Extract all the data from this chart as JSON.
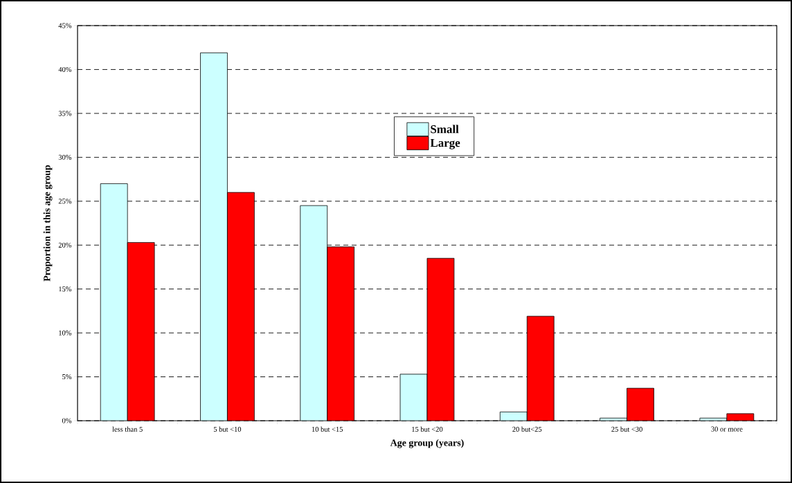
{
  "chart_data": {
    "type": "bar",
    "xlabel": "Age group (years)",
    "ylabel": "Proportion in this age group",
    "categories": [
      "less than 5",
      "5 but <10",
      "10 but <15",
      "15 but <20",
      "20 but<25",
      "25 but <30",
      "30 or more"
    ],
    "series": [
      {
        "name": "Small",
        "color": "#ccffff",
        "values": [
          27.0,
          41.9,
          24.5,
          5.3,
          1.0,
          0.3,
          0.3
        ]
      },
      {
        "name": "Large",
        "color": "#ff0000",
        "values": [
          20.3,
          26.0,
          19.8,
          18.5,
          11.9,
          3.7,
          0.8
        ]
      }
    ],
    "ylim": [
      0,
      45
    ],
    "yticks": [
      {
        "value": 0,
        "label": "0%"
      },
      {
        "value": 5,
        "label": "5%"
      },
      {
        "value": 10,
        "label": "10%"
      },
      {
        "value": 15,
        "label": "15%"
      },
      {
        "value": 20,
        "label": "20%"
      },
      {
        "value": 25,
        "label": "25%"
      },
      {
        "value": 30,
        "label": "30%"
      },
      {
        "value": 35,
        "label": "35%"
      },
      {
        "value": 40,
        "label": "40%"
      },
      {
        "value": 45,
        "label": "45%"
      }
    ],
    "grid": "y",
    "legend": "top"
  }
}
